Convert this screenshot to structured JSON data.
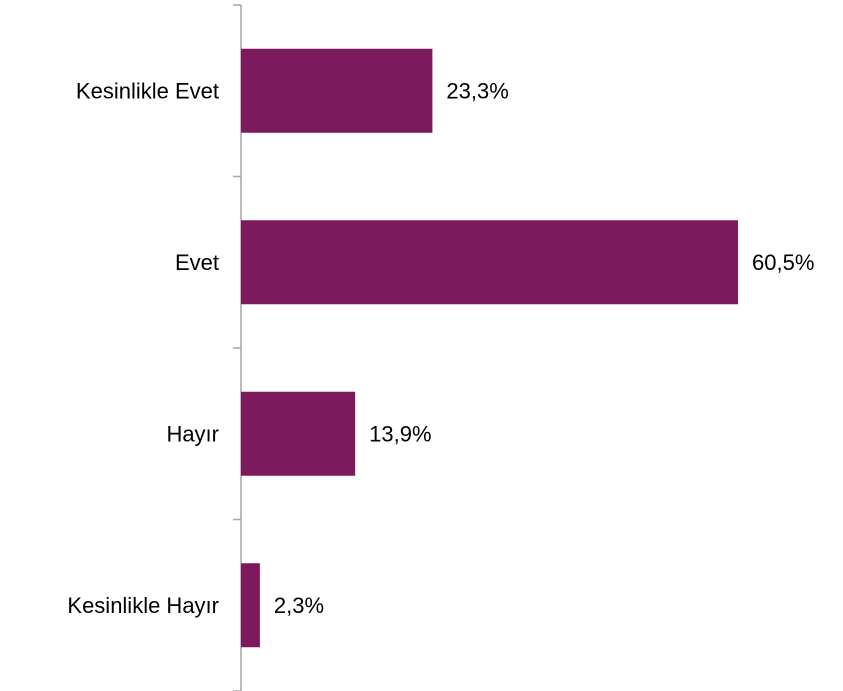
{
  "chart_data": {
    "type": "bar",
    "orientation": "horizontal",
    "categories": [
      "Kesinlikle Evet",
      "Evet",
      "Hayır",
      "Kesinlikle Hayır"
    ],
    "values": [
      23.3,
      60.5,
      13.9,
      2.3
    ],
    "value_labels": [
      "23,3%",
      "60,5%",
      "13,9%",
      "2,3%"
    ],
    "unit": "%",
    "xlim": [
      0,
      60.5
    ],
    "grid": false,
    "legend": "none",
    "colors": {
      "bar": "#7D1A5D",
      "axis": "#A6A6A6",
      "text": "#000000"
    }
  }
}
